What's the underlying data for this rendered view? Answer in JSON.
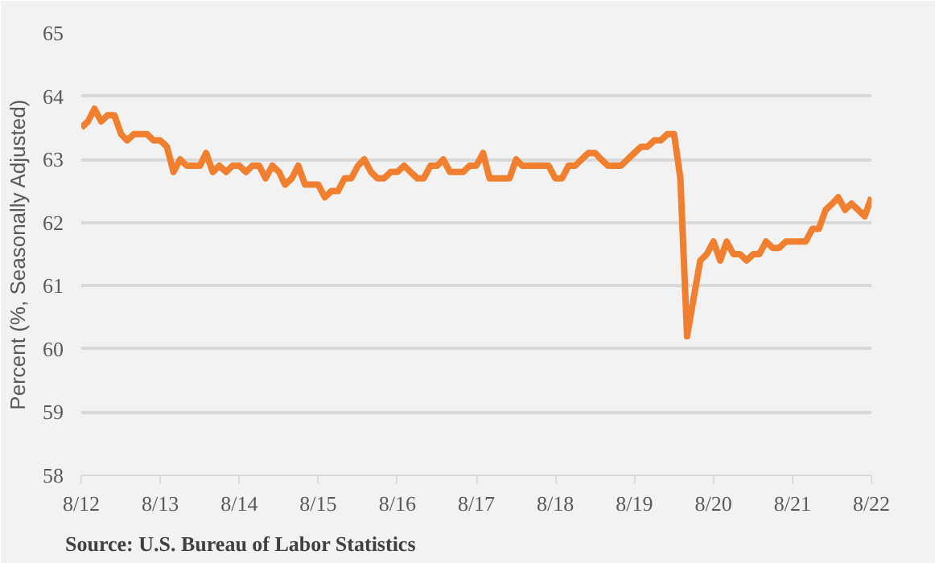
{
  "chart_data": {
    "type": "line",
    "ylabel": "Percent (%, Seasonally Adjusted)",
    "annotations": [
      "Source:  U.S. Bureau of Labor Statistics"
    ],
    "x": [
      "2012-08",
      "2012-09",
      "2012-10",
      "2012-11",
      "2012-12",
      "2013-01",
      "2013-02",
      "2013-03",
      "2013-04",
      "2013-05",
      "2013-06",
      "2013-07",
      "2013-08",
      "2013-09",
      "2013-10",
      "2013-11",
      "2013-12",
      "2014-01",
      "2014-02",
      "2014-03",
      "2014-04",
      "2014-05",
      "2014-06",
      "2014-07",
      "2014-08",
      "2014-09",
      "2014-10",
      "2014-11",
      "2014-12",
      "2015-01",
      "2015-02",
      "2015-03",
      "2015-04",
      "2015-05",
      "2015-06",
      "2015-07",
      "2015-08",
      "2015-09",
      "2015-10",
      "2015-11",
      "2015-12",
      "2016-01",
      "2016-02",
      "2016-03",
      "2016-04",
      "2016-05",
      "2016-06",
      "2016-07",
      "2016-08",
      "2016-09",
      "2016-10",
      "2016-11",
      "2016-12",
      "2017-01",
      "2017-02",
      "2017-03",
      "2017-04",
      "2017-05",
      "2017-06",
      "2017-07",
      "2017-08",
      "2017-09",
      "2017-10",
      "2017-11",
      "2017-12",
      "2018-01",
      "2018-02",
      "2018-03",
      "2018-04",
      "2018-05",
      "2018-06",
      "2018-07",
      "2018-08",
      "2018-09",
      "2018-10",
      "2018-11",
      "2018-12",
      "2019-01",
      "2019-02",
      "2019-03",
      "2019-04",
      "2019-05",
      "2019-06",
      "2019-07",
      "2019-08",
      "2019-09",
      "2019-10",
      "2019-11",
      "2019-12",
      "2020-01",
      "2020-02",
      "2020-03",
      "2020-04",
      "2020-05",
      "2020-06",
      "2020-07",
      "2020-08",
      "2020-09",
      "2020-10",
      "2020-11",
      "2020-12",
      "2021-01",
      "2021-02",
      "2021-03",
      "2021-04",
      "2021-05",
      "2021-06",
      "2021-07",
      "2021-08",
      "2021-09",
      "2021-10",
      "2021-11",
      "2021-12",
      "2022-01",
      "2022-02",
      "2022-03",
      "2022-04",
      "2022-05",
      "2022-06",
      "2022-07",
      "2022-08"
    ],
    "series": [
      {
        "color": "#f0802f",
        "values": [
          63.5,
          63.6,
          63.8,
          63.6,
          63.7,
          63.7,
          63.4,
          63.3,
          63.4,
          63.4,
          63.4,
          63.3,
          63.3,
          63.2,
          62.8,
          63.0,
          62.9,
          62.9,
          62.9,
          63.1,
          62.8,
          62.9,
          62.8,
          62.9,
          62.9,
          62.8,
          62.9,
          62.9,
          62.7,
          62.9,
          62.8,
          62.6,
          62.7,
          62.9,
          62.6,
          62.6,
          62.6,
          62.4,
          62.5,
          62.5,
          62.7,
          62.7,
          62.9,
          63.0,
          62.8,
          62.7,
          62.7,
          62.8,
          62.8,
          62.9,
          62.8,
          62.7,
          62.7,
          62.9,
          62.9,
          63.0,
          62.8,
          62.8,
          62.8,
          62.9,
          62.9,
          63.1,
          62.7,
          62.7,
          62.7,
          62.7,
          63.0,
          62.9,
          62.9,
          62.9,
          62.9,
          62.9,
          62.7,
          62.7,
          62.9,
          62.9,
          63.0,
          63.1,
          63.1,
          63.0,
          62.9,
          62.9,
          62.9,
          63.0,
          63.1,
          63.2,
          63.2,
          63.3,
          63.3,
          63.4,
          63.4,
          62.7,
          60.2,
          60.8,
          61.4,
          61.5,
          61.7,
          61.4,
          61.7,
          61.5,
          61.5,
          61.4,
          61.5,
          61.5,
          61.7,
          61.6,
          61.6,
          61.7,
          61.7,
          61.7,
          61.7,
          61.9,
          61.9,
          62.2,
          62.3,
          62.4,
          62.2,
          62.3,
          62.2,
          62.1,
          62.4
        ]
      }
    ],
    "xlim": [
      "2012-08",
      "2022-08"
    ],
    "xticks": [
      {
        "value": "2012-08",
        "label": "8/12"
      },
      {
        "value": "2013-08",
        "label": "8/13"
      },
      {
        "value": "2014-08",
        "label": "8/14"
      },
      {
        "value": "2015-08",
        "label": "8/15"
      },
      {
        "value": "2016-08",
        "label": "8/16"
      },
      {
        "value": "2017-08",
        "label": "8/17"
      },
      {
        "value": "2018-08",
        "label": "8/18"
      },
      {
        "value": "2019-08",
        "label": "8/19"
      },
      {
        "value": "2020-08",
        "label": "8/20"
      },
      {
        "value": "2021-08",
        "label": "8/21"
      },
      {
        "value": "2022-08",
        "label": "8/22"
      }
    ],
    "ylim": [
      58,
      65
    ],
    "yticks": [
      58,
      59,
      60,
      61,
      62,
      63,
      64,
      65
    ],
    "grid": "y",
    "line_style": "solid"
  }
}
